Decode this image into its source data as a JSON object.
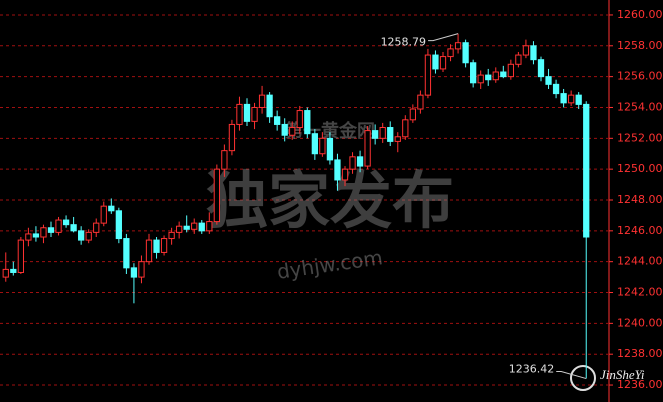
{
  "chart_data": {
    "type": "candlestick",
    "up_color": "#ff3232",
    "down_color": "#54ffff",
    "grid_color": "#a01010",
    "grid": true,
    "ylim": [
      1234.9,
      1260.97
    ],
    "yticks": [
      {
        "value": 1236,
        "label": "1236.00"
      },
      {
        "value": 1238,
        "label": "1238.00"
      },
      {
        "value": 1240,
        "label": "1240.00"
      },
      {
        "value": 1242,
        "label": "1242.00"
      },
      {
        "value": 1244,
        "label": "1244.00"
      },
      {
        "value": 1246,
        "label": "1246.00"
      },
      {
        "value": 1248,
        "label": "1248.00"
      },
      {
        "value": 1250,
        "label": "1250.00"
      },
      {
        "value": 1252,
        "label": "1252.00"
      },
      {
        "value": 1254,
        "label": "1254.00"
      },
      {
        "value": 1256,
        "label": "1256.00"
      },
      {
        "value": 1258,
        "label": "1258.00"
      },
      {
        "value": 1260,
        "label": "1260.00"
      }
    ],
    "open": [
      1243.0,
      1243.5,
      1243.3,
      1245.4,
      1245.8,
      1245.6,
      1246.2,
      1245.9,
      1246.7,
      1246.4,
      1246.0,
      1245.4,
      1245.9,
      1246.5,
      1247.6,
      1247.3,
      1245.5,
      1243.6,
      1243.0,
      1244.0,
      1245.4,
      1244.6,
      1245.5,
      1245.9,
      1246.3,
      1246.1,
      1246.5,
      1246.0,
      1246.6,
      1250.0,
      1251.2,
      1252.9,
      1254.2,
      1253.1,
      1254.0,
      1254.8,
      1253.4,
      1252.9,
      1252.2,
      1252.7,
      1253.8,
      1252.3,
      1251.0,
      1252.0,
      1250.6,
      1249.3,
      1250.0,
      1250.8,
      1250.2,
      1252.5,
      1252.0,
      1252.7,
      1251.8,
      1252.1,
      1253.2,
      1253.9,
      1254.8,
      1257.4,
      1256.5,
      1257.3,
      1257.8,
      1258.2,
      1256.9,
      1255.6,
      1256.1,
      1255.8,
      1256.3,
      1256.0,
      1256.8,
      1257.4,
      1258.0,
      1257.1,
      1256.0,
      1255.5,
      1254.9,
      1254.3,
      1254.8,
      1254.2
    ],
    "high": [
      1244.6,
      1244.0,
      1245.6,
      1246.2,
      1246.3,
      1246.4,
      1246.6,
      1246.9,
      1247.0,
      1246.9,
      1246.3,
      1246.1,
      1246.8,
      1247.9,
      1248.1,
      1247.5,
      1245.8,
      1243.9,
      1244.4,
      1245.8,
      1245.6,
      1245.7,
      1246.2,
      1246.6,
      1247.0,
      1246.8,
      1246.7,
      1247.2,
      1250.3,
      1251.6,
      1253.2,
      1254.7,
      1254.6,
      1254.3,
      1255.4,
      1255.0,
      1253.8,
      1253.3,
      1253.1,
      1254.1,
      1254.0,
      1252.6,
      1252.4,
      1252.4,
      1251.0,
      1250.2,
      1251.1,
      1251.2,
      1252.8,
      1252.9,
      1253.0,
      1253.1,
      1252.4,
      1253.5,
      1254.2,
      1255.1,
      1257.8,
      1257.7,
      1257.6,
      1258.1,
      1258.79,
      1258.4,
      1257.1,
      1256.4,
      1256.5,
      1256.6,
      1256.7,
      1257.1,
      1257.6,
      1258.4,
      1258.3,
      1257.3,
      1256.5,
      1255.8,
      1255.2,
      1255.1,
      1255.0,
      1254.4
    ],
    "low": [
      1242.7,
      1243.1,
      1243.2,
      1245.0,
      1245.3,
      1245.2,
      1245.6,
      1245.7,
      1246.2,
      1245.9,
      1245.1,
      1245.2,
      1245.6,
      1246.3,
      1247.1,
      1245.2,
      1243.2,
      1241.3,
      1242.6,
      1243.8,
      1244.2,
      1244.4,
      1245.1,
      1245.5,
      1245.9,
      1245.8,
      1245.8,
      1245.8,
      1246.4,
      1249.5,
      1250.9,
      1252.5,
      1252.8,
      1252.6,
      1253.6,
      1253.0,
      1252.5,
      1251.8,
      1251.9,
      1252.3,
      1252.0,
      1250.6,
      1250.8,
      1250.3,
      1248.6,
      1248.9,
      1249.7,
      1249.8,
      1250.0,
      1251.6,
      1251.7,
      1251.5,
      1251.1,
      1251.9,
      1253.0,
      1253.6,
      1254.6,
      1256.2,
      1256.3,
      1257.0,
      1257.5,
      1256.6,
      1255.3,
      1255.2,
      1255.4,
      1255.6,
      1255.9,
      1255.8,
      1256.6,
      1257.2,
      1256.8,
      1255.7,
      1255.2,
      1254.6,
      1254.0,
      1254.1,
      1253.9,
      1236.42
    ],
    "close": [
      1243.5,
      1243.3,
      1245.4,
      1245.8,
      1245.6,
      1246.2,
      1245.9,
      1246.7,
      1246.4,
      1246.0,
      1245.4,
      1245.9,
      1246.5,
      1247.6,
      1247.3,
      1245.5,
      1243.6,
      1243.0,
      1244.0,
      1245.4,
      1244.6,
      1245.5,
      1245.9,
      1246.3,
      1246.1,
      1246.5,
      1246.0,
      1246.6,
      1250.0,
      1251.2,
      1252.9,
      1254.2,
      1253.1,
      1254.0,
      1254.8,
      1253.4,
      1252.9,
      1252.2,
      1252.7,
      1253.8,
      1252.3,
      1251.0,
      1252.0,
      1250.6,
      1249.3,
      1250.0,
      1250.8,
      1250.2,
      1252.5,
      1252.0,
      1252.7,
      1251.8,
      1252.1,
      1253.2,
      1253.9,
      1254.8,
      1257.4,
      1256.5,
      1257.3,
      1257.8,
      1258.2,
      1256.9,
      1255.6,
      1256.1,
      1255.8,
      1256.3,
      1256.0,
      1256.8,
      1257.4,
      1258.0,
      1257.1,
      1256.0,
      1255.5,
      1254.9,
      1254.3,
      1254.8,
      1254.2,
      1245.6
    ],
    "watermark": {
      "headline": "独家发布",
      "url": "dyhjw.com",
      "brand": "第一黄金网",
      "logo": "JinSheYi"
    }
  }
}
